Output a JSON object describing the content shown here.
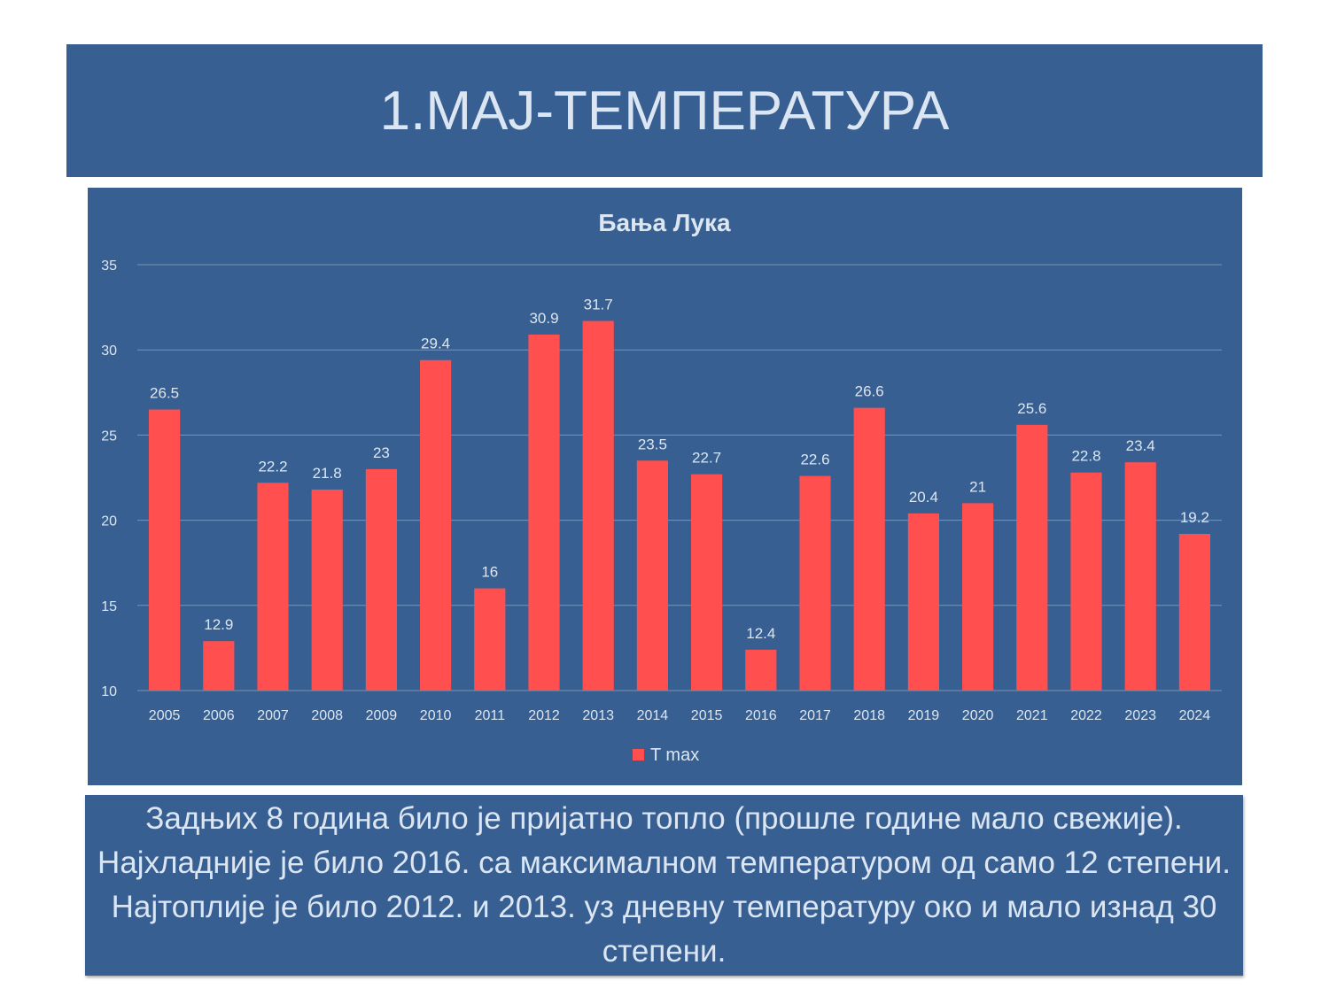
{
  "slide": {
    "title": "1.МАЈ-ТЕМПЕРАТУРА",
    "caption": "Задњих 8 година било је пријатно топло (прошле године мало свежије). Најхладније је било 2016. са максималном температуром од само 12 степени. Најтоплије је било 2012. и 2013. уз дневну температуру око и мало изнад 30 степени."
  },
  "colors": {
    "panel_background": "#375f91",
    "bar": "#ff4f4f",
    "text_light": "#dce6f2",
    "gridline": "#7f93ad"
  },
  "chart_data": {
    "type": "bar",
    "title": "Бања Лука",
    "categories": [
      "2005",
      "2006",
      "2007",
      "2008",
      "2009",
      "2010",
      "2011",
      "2012",
      "2013",
      "2014",
      "2015",
      "2016",
      "2017",
      "2018",
      "2019",
      "2020",
      "2021",
      "2022",
      "2023",
      "2024"
    ],
    "series": [
      {
        "name": "T max",
        "values": [
          26.5,
          12.9,
          22.2,
          21.8,
          23,
          29.4,
          16,
          30.9,
          31.7,
          23.5,
          22.7,
          12.4,
          22.6,
          26.6,
          20.4,
          21,
          25.6,
          22.8,
          23.4,
          19.2
        ],
        "value_labels": [
          "26.5",
          "12.9",
          "22.2",
          "21.8",
          "23",
          "29.4",
          "16",
          "30.9",
          "31.7",
          "23.5",
          "22.7",
          "12.4",
          "22.6",
          "26.6",
          "20.4",
          "21",
          "25.6",
          "22.8",
          "23.4",
          "19.2"
        ]
      }
    ],
    "ylim": [
      10,
      35
    ],
    "yticks": [
      "10",
      "15",
      "20",
      "25",
      "30",
      "35"
    ],
    "grid": true,
    "legend_position": "bottom",
    "data_labels": true
  }
}
